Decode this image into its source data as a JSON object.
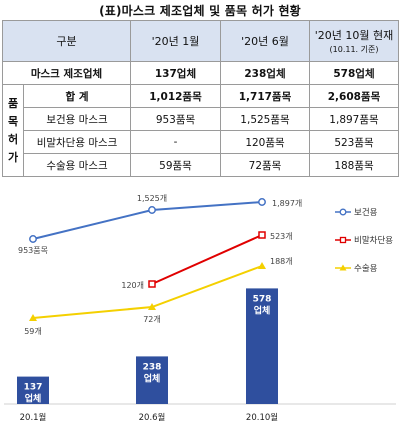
{
  "title": "(표)마스크 제조업체 및 품목 허가 현황",
  "table": {
    "header": {
      "category": "구분",
      "col1": "'20년 1월",
      "col2": "'20년 6월",
      "col3": "'20년 10월 현재",
      "col3_note": "(10.11. 기준)"
    },
    "manufacturer": {
      "label": "마스크 제조업체",
      "values": [
        "137업체",
        "238업체",
        "578업체"
      ]
    },
    "side_label": [
      "품",
      "목",
      "허",
      "가"
    ],
    "total": {
      "label": "합 계",
      "values": [
        "1,012품목",
        "1,717품목",
        "2,608품목"
      ]
    },
    "rows": [
      {
        "label": "보건용 마스크",
        "values": [
          "953품목",
          "1,525품목",
          "1,897품목"
        ]
      },
      {
        "label": "비말차단용 마스크",
        "values": [
          "-",
          "120품목",
          "523품목"
        ]
      },
      {
        "label": "수술용 마스크",
        "values": [
          "59품목",
          "72품목",
          "188품목"
        ]
      }
    ]
  },
  "chart_data": {
    "type": "bar",
    "categories": [
      "20.1월",
      "20.6월",
      "20.10월"
    ],
    "bars": {
      "values": [
        137,
        238,
        578
      ],
      "labels": [
        "137 업체",
        "238 업체",
        "578 업체"
      ],
      "color": "#2f4f9e"
    },
    "series": [
      {
        "name": "보건용",
        "type": "line",
        "values": [
          953,
          1525,
          1897
        ],
        "labels": [
          "953품목",
          "1,525개",
          "1,897개"
        ],
        "color": "#4472c4",
        "marker": "circle"
      },
      {
        "name": "비말차단용",
        "type": "line",
        "values": [
          null,
          120,
          523
        ],
        "labels": [
          "",
          "120개",
          "523개"
        ],
        "color": "#e00000",
        "marker": "square"
      },
      {
        "name": "수술용",
        "type": "line",
        "values": [
          59,
          72,
          188
        ],
        "labels": [
          "59개",
          "72개",
          "188개"
        ],
        "color": "#f4d000",
        "marker": "triangle"
      }
    ],
    "legend_position": "right",
    "grid": false
  }
}
